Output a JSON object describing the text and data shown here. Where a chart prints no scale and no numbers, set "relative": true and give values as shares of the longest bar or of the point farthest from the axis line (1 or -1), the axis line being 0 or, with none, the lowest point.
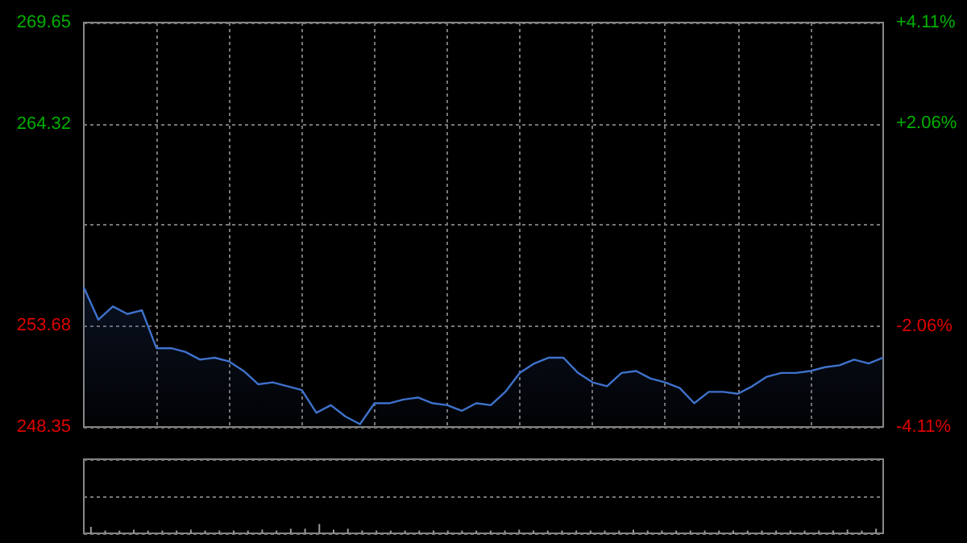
{
  "chart_data": [
    {
      "type": "area",
      "categories": [
        null,
        null,
        null,
        null,
        null,
        null,
        null,
        null,
        null,
        null,
        null,
        null,
        null,
        null,
        null,
        null,
        null,
        null,
        null,
        null,
        null,
        null,
        null,
        null,
        null,
        null,
        null,
        null,
        null,
        null,
        null,
        null,
        null,
        null,
        null,
        null,
        null,
        null,
        null,
        null,
        null,
        null,
        null,
        null,
        null,
        null,
        null,
        null,
        null,
        null,
        null,
        null,
        null,
        null,
        null,
        null
      ],
      "series": [
        {
          "color": "#3f72cc",
          "values": [
            255.7,
            254.0,
            254.7,
            254.3,
            254.5,
            252.5,
            252.5,
            252.3,
            251.9,
            252.0,
            251.8,
            251.3,
            250.6,
            250.7,
            250.5,
            250.3,
            249.1,
            249.5,
            248.9,
            248.5,
            249.6,
            249.6,
            249.8,
            249.9,
            249.6,
            249.5,
            249.2,
            249.6,
            249.5,
            250.2,
            251.2,
            251.7,
            252.0,
            252.0,
            251.2,
            250.7,
            250.5,
            251.2,
            251.3,
            250.9,
            250.7,
            250.4,
            249.6,
            250.2,
            250.2,
            250.1,
            250.5,
            251.0,
            251.2,
            251.2,
            251.3,
            251.5,
            251.6,
            251.9,
            251.7,
            252.0
          ]
        }
      ],
      "ylim": [
        248.35,
        269.65
      ],
      "yticks": [
        248.35,
        253.68,
        {
          "value": 259.0,
          "label": null
        },
        264.32,
        269.65
      ],
      "y2lim": [
        -4.11,
        4.11
      ],
      "y2ticks": [
        {
          "value": -4.11,
          "label": "-4.11%"
        },
        {
          "value": -2.06,
          "label": "-2.06%"
        },
        {
          "value": 0,
          "label": null
        },
        {
          "value": 2.06,
          "label": "+2.06%"
        },
        {
          "value": 4.11,
          "label": "+4.11%"
        }
      ],
      "grid": true,
      "tick_labels": "y"
    },
    {
      "type": "bar",
      "relative": true,
      "categories": [
        null,
        null,
        null,
        null,
        null,
        null,
        null,
        null,
        null,
        null,
        null,
        null,
        null,
        null,
        null,
        null,
        null,
        null,
        null,
        null,
        null,
        null,
        null,
        null,
        null,
        null,
        null,
        null,
        null,
        null,
        null,
        null,
        null,
        null,
        null,
        null,
        null,
        null,
        null,
        null,
        null,
        null,
        null,
        null,
        null,
        null,
        null,
        null,
        null,
        null,
        null,
        null,
        null,
        null,
        null,
        null
      ],
      "values": [
        0.7,
        0.3,
        0.3,
        0.4,
        0.3,
        0.3,
        0.3,
        0.4,
        0.3,
        0.3,
        0.3,
        0.3,
        0.4,
        0.3,
        0.5,
        0.5,
        1,
        0.4,
        0.5,
        0.3,
        0.3,
        0.3,
        0.3,
        0.3,
        0.3,
        0.3,
        0.3,
        0.3,
        0.3,
        0.3,
        0.4,
        0.3,
        0.3,
        0.3,
        0.3,
        0.3,
        0.3,
        0.3,
        0.4,
        0.3,
        0.3,
        0.3,
        0.3,
        0.3,
        0.3,
        0.3,
        0.3,
        0.3,
        0.3,
        0.3,
        0.3,
        0.3,
        0.3,
        0.4,
        0.3,
        0.5
      ],
      "color": "#9a9a9a",
      "tick_labels": false
    }
  ]
}
